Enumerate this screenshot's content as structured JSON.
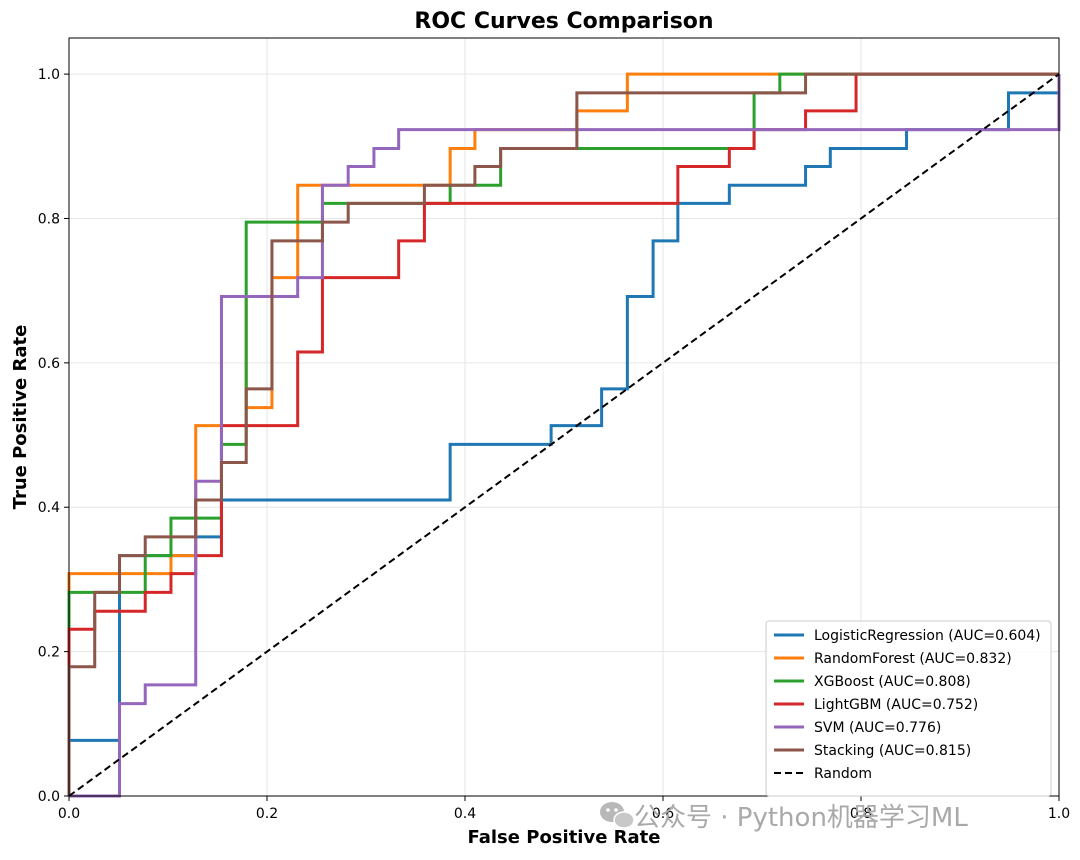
{
  "chart_data": {
    "type": "line",
    "title": "ROC Curves Comparison",
    "xlabel": "False Positive Rate",
    "ylabel": "True Positive Rate",
    "xlim": [
      0.0,
      1.0
    ],
    "ylim": [
      0.0,
      1.05
    ],
    "xticks": [
      0.0,
      0.2,
      0.4,
      0.6,
      0.8,
      1.0
    ],
    "yticks": [
      0.0,
      0.2,
      0.4,
      0.6,
      0.8,
      1.0
    ],
    "xtick_labels": [
      "0.0",
      "0.2",
      "0.4",
      "0.6",
      "0.8",
      "1.0"
    ],
    "ytick_labels": [
      "0.0",
      "0.2",
      "0.4",
      "0.6",
      "0.8",
      "1.0"
    ],
    "grid": true,
    "legend_position": "lower-right",
    "series": [
      {
        "name": "LogisticRegression (AUC=0.604)",
        "color": "#1f77b4",
        "dash": "solid",
        "points": [
          [
            0,
            0
          ],
          [
            0,
            0.077
          ],
          [
            0.051,
            0.077
          ],
          [
            0.051,
            0.128
          ],
          [
            0.051,
            0.256
          ],
          [
            0.051,
            0.333
          ],
          [
            0.128,
            0.333
          ],
          [
            0.128,
            0.359
          ],
          [
            0.154,
            0.359
          ],
          [
            0.154,
            0.41
          ],
          [
            0.385,
            0.41
          ],
          [
            0.385,
            0.487
          ],
          [
            0.487,
            0.487
          ],
          [
            0.487,
            0.513
          ],
          [
            0.538,
            0.513
          ],
          [
            0.538,
            0.564
          ],
          [
            0.564,
            0.564
          ],
          [
            0.564,
            0.692
          ],
          [
            0.59,
            0.692
          ],
          [
            0.59,
            0.769
          ],
          [
            0.615,
            0.769
          ],
          [
            0.615,
            0.821
          ],
          [
            0.667,
            0.821
          ],
          [
            0.667,
            0.846
          ],
          [
            0.744,
            0.846
          ],
          [
            0.744,
            0.872
          ],
          [
            0.769,
            0.872
          ],
          [
            0.769,
            0.897
          ],
          [
            0.846,
            0.897
          ],
          [
            0.846,
            0.923
          ],
          [
            0.949,
            0.923
          ],
          [
            0.949,
            0.974
          ],
          [
            1.0,
            0.974
          ],
          [
            1.0,
            1.0
          ]
        ]
      },
      {
        "name": "RandomForest (AUC=0.832)",
        "color": "#ff7f0e",
        "dash": "solid",
        "points": [
          [
            0,
            0
          ],
          [
            0,
            0.308
          ],
          [
            0.103,
            0.308
          ],
          [
            0.103,
            0.333
          ],
          [
            0.128,
            0.333
          ],
          [
            0.128,
            0.513
          ],
          [
            0.154,
            0.513
          ],
          [
            0.154,
            0.692
          ],
          [
            0.179,
            0.692
          ],
          [
            0.179,
            0.538
          ],
          [
            0.205,
            0.538
          ],
          [
            0.205,
            0.718
          ],
          [
            0.231,
            0.718
          ],
          [
            0.231,
            0.846
          ],
          [
            0.385,
            0.846
          ],
          [
            0.385,
            0.897
          ],
          [
            0.41,
            0.897
          ],
          [
            0.41,
            0.923
          ],
          [
            0.513,
            0.923
          ],
          [
            0.513,
            0.949
          ],
          [
            0.564,
            0.949
          ],
          [
            0.564,
            1.0
          ],
          [
            1.0,
            1.0
          ]
        ]
      },
      {
        "name": "XGBoost (AUC=0.808)",
        "color": "#2ca02c",
        "dash": "solid",
        "points": [
          [
            0,
            0
          ],
          [
            0,
            0.282
          ],
          [
            0.077,
            0.282
          ],
          [
            0.077,
            0.333
          ],
          [
            0.103,
            0.333
          ],
          [
            0.103,
            0.385
          ],
          [
            0.154,
            0.385
          ],
          [
            0.154,
            0.487
          ],
          [
            0.179,
            0.487
          ],
          [
            0.179,
            0.795
          ],
          [
            0.256,
            0.795
          ],
          [
            0.256,
            0.821
          ],
          [
            0.385,
            0.821
          ],
          [
            0.385,
            0.846
          ],
          [
            0.436,
            0.846
          ],
          [
            0.436,
            0.897
          ],
          [
            0.692,
            0.897
          ],
          [
            0.692,
            0.974
          ],
          [
            0.718,
            0.974
          ],
          [
            0.718,
            1.0
          ],
          [
            1.0,
            1.0
          ]
        ]
      },
      {
        "name": "LightGBM (AUC=0.752)",
        "color": "#d62728",
        "dash": "solid",
        "points": [
          [
            0,
            0
          ],
          [
            0,
            0.231
          ],
          [
            0.026,
            0.231
          ],
          [
            0.026,
            0.256
          ],
          [
            0.077,
            0.256
          ],
          [
            0.077,
            0.282
          ],
          [
            0.103,
            0.282
          ],
          [
            0.103,
            0.308
          ],
          [
            0.128,
            0.308
          ],
          [
            0.128,
            0.333
          ],
          [
            0.154,
            0.333
          ],
          [
            0.154,
            0.513
          ],
          [
            0.231,
            0.513
          ],
          [
            0.231,
            0.615
          ],
          [
            0.256,
            0.615
          ],
          [
            0.256,
            0.718
          ],
          [
            0.333,
            0.718
          ],
          [
            0.333,
            0.769
          ],
          [
            0.359,
            0.769
          ],
          [
            0.359,
            0.821
          ],
          [
            0.615,
            0.821
          ],
          [
            0.615,
            0.872
          ],
          [
            0.667,
            0.872
          ],
          [
            0.667,
            0.897
          ],
          [
            0.692,
            0.897
          ],
          [
            0.692,
            0.923
          ],
          [
            0.744,
            0.923
          ],
          [
            0.744,
            0.949
          ],
          [
            0.795,
            0.949
          ],
          [
            0.795,
            1.0
          ],
          [
            1.0,
            1.0
          ]
        ]
      },
      {
        "name": "SVM (AUC=0.776)",
        "color": "#9467bd",
        "dash": "solid",
        "points": [
          [
            0,
            0
          ],
          [
            0.051,
            0
          ],
          [
            0.051,
            0.128
          ],
          [
            0.077,
            0.128
          ],
          [
            0.077,
            0.154
          ],
          [
            0.128,
            0.154
          ],
          [
            0.128,
            0.436
          ],
          [
            0.154,
            0.436
          ],
          [
            0.154,
            0.692
          ],
          [
            0.231,
            0.692
          ],
          [
            0.231,
            0.718
          ],
          [
            0.256,
            0.718
          ],
          [
            0.256,
            0.846
          ],
          [
            0.282,
            0.846
          ],
          [
            0.282,
            0.872
          ],
          [
            0.308,
            0.872
          ],
          [
            0.308,
            0.897
          ],
          [
            0.333,
            0.897
          ],
          [
            0.333,
            0.923
          ],
          [
            1.0,
            0.923
          ],
          [
            1.0,
            1.0
          ]
        ]
      },
      {
        "name": "Stacking (AUC=0.815)",
        "color": "#8c564b",
        "dash": "solid",
        "points": [
          [
            0,
            0
          ],
          [
            0,
            0.179
          ],
          [
            0.026,
            0.179
          ],
          [
            0.026,
            0.282
          ],
          [
            0.051,
            0.282
          ],
          [
            0.051,
            0.333
          ],
          [
            0.077,
            0.333
          ],
          [
            0.077,
            0.359
          ],
          [
            0.128,
            0.359
          ],
          [
            0.128,
            0.41
          ],
          [
            0.154,
            0.41
          ],
          [
            0.154,
            0.462
          ],
          [
            0.179,
            0.462
          ],
          [
            0.179,
            0.564
          ],
          [
            0.205,
            0.564
          ],
          [
            0.205,
            0.769
          ],
          [
            0.256,
            0.769
          ],
          [
            0.256,
            0.795
          ],
          [
            0.282,
            0.795
          ],
          [
            0.282,
            0.821
          ],
          [
            0.359,
            0.821
          ],
          [
            0.359,
            0.846
          ],
          [
            0.41,
            0.846
          ],
          [
            0.41,
            0.872
          ],
          [
            0.436,
            0.872
          ],
          [
            0.436,
            0.897
          ],
          [
            0.513,
            0.897
          ],
          [
            0.513,
            0.974
          ],
          [
            0.744,
            0.974
          ],
          [
            0.744,
            1.0
          ],
          [
            1.0,
            1.0
          ]
        ]
      },
      {
        "name": "Random",
        "color": "#000000",
        "dash": "dashed",
        "points": [
          [
            0,
            0
          ],
          [
            1,
            1
          ]
        ]
      }
    ]
  },
  "watermark": {
    "text": "公众号 · Python机器学习ML",
    "icon": "wechat-icon",
    "color": "#a9a9a9"
  }
}
